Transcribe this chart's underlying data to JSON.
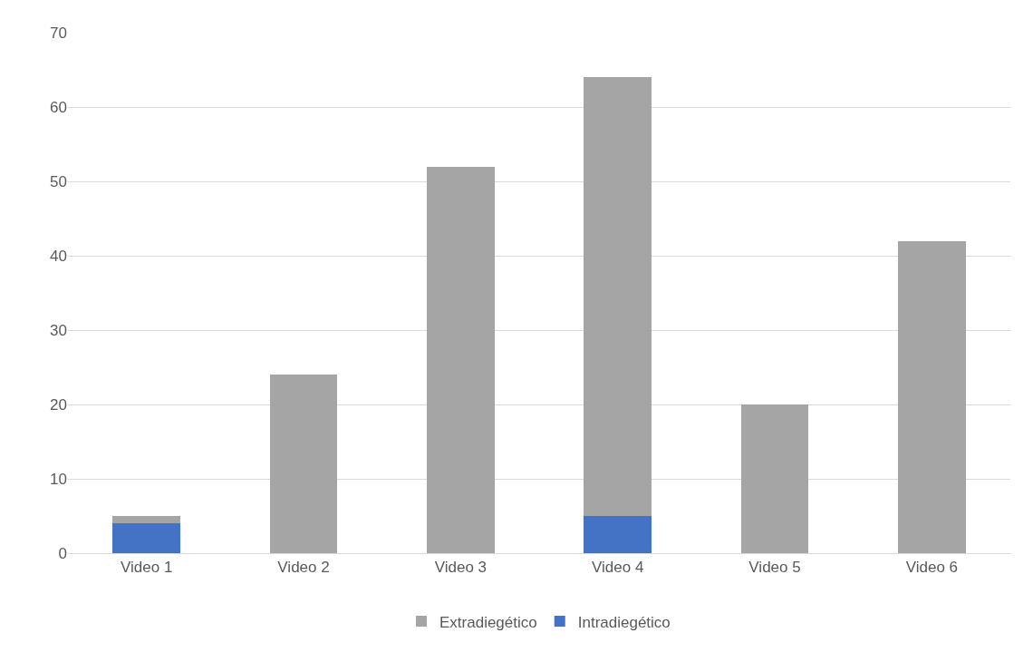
{
  "chart_data": {
    "type": "bar",
    "stacked": true,
    "categories": [
      "Video 1",
      "Video 2",
      "Video 3",
      "Video 4",
      "Video 5",
      "Video 6"
    ],
    "series": [
      {
        "name": "Intradiegético",
        "color": "#4472c4",
        "values": [
          4,
          0,
          0,
          5,
          0,
          0
        ]
      },
      {
        "name": "Extradiegético",
        "color": "#a5a5a5",
        "values": [
          1,
          24,
          52,
          59,
          20,
          42
        ]
      }
    ],
    "ylim": [
      0,
      70
    ],
    "yticks": [
      0,
      10,
      20,
      30,
      40,
      50,
      60,
      70
    ],
    "grid": "y",
    "legend": "bottom"
  }
}
